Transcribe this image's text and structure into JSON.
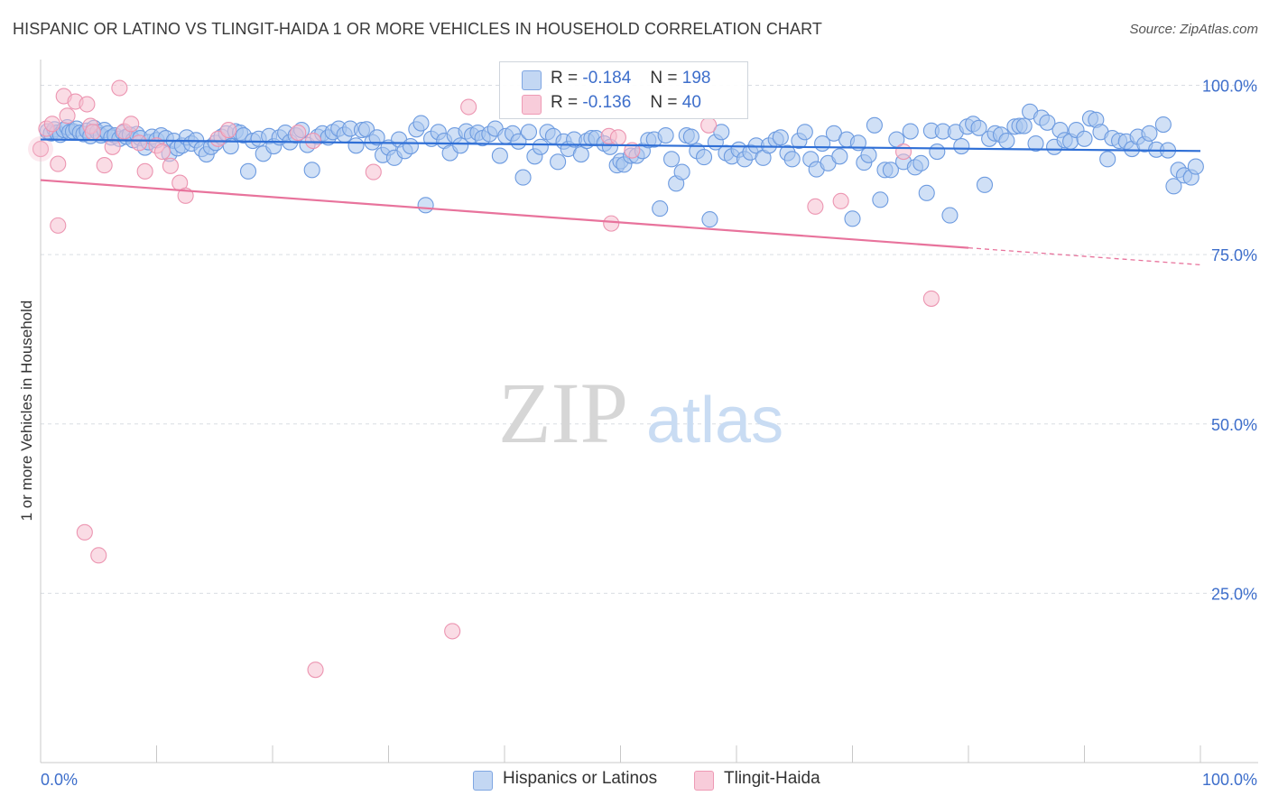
{
  "title": "HISPANIC OR LATINO VS TLINGIT-HAIDA 1 OR MORE VEHICLES IN HOUSEHOLD CORRELATION CHART",
  "source": "Source: ZipAtlas.com",
  "watermark": {
    "zip": "ZIP",
    "atlas": "atlas"
  },
  "legend_box": {
    "rows": [
      {
        "r_label": "R =",
        "r_value": "-0.184",
        "n_label": "N =",
        "n_value": "198"
      },
      {
        "r_label": "R =",
        "r_value": "-0.136",
        "n_label": "N =",
        "n_value": "40"
      }
    ]
  },
  "colors": {
    "blue_fill": "#a9c6ef",
    "blue_stroke": "#6d9be0",
    "blue_line": "#2f6fd6",
    "pink_fill": "#f6bfd0",
    "pink_stroke": "#ec95b1",
    "pink_line": "#e8739c",
    "tick_label": "#3d6ecb",
    "grid": "#d9dde3"
  },
  "chart_data": {
    "type": "scatter",
    "title": "HISPANIC OR LATINO VS TLINGIT-HAIDA 1 OR MORE VEHICLES IN HOUSEHOLD CORRELATION CHART",
    "xlabel": "",
    "ylabel": "1 or more Vehicles in Household",
    "xlim": [
      0,
      100
    ],
    "ylim": [
      0,
      103
    ],
    "x_tick_labels": [
      "0.0%",
      "100.0%"
    ],
    "y_tick_labels": [
      "25.0%",
      "50.0%",
      "75.0%",
      "100.0%"
    ],
    "y_ticks": [
      25,
      50,
      75,
      100
    ],
    "grid": true,
    "legend_position": "bottom-center",
    "series": [
      {
        "name": "Hispanics or Latinos",
        "r": -0.184,
        "n": 198,
        "trend": {
          "x": [
            0,
            100
          ],
          "y": [
            92.0,
            90.3
          ]
        },
        "points": [
          [
            0.6,
            93.2
          ],
          [
            0.9,
            92.9
          ],
          [
            1.2,
            93.5
          ],
          [
            1.4,
            93.0
          ],
          [
            1.7,
            92.7
          ],
          [
            2.0,
            93.4
          ],
          [
            2.3,
            93.8
          ],
          [
            2.5,
            93.1
          ],
          [
            2.8,
            93.2
          ],
          [
            3.1,
            93.6
          ],
          [
            3.4,
            93.0
          ],
          [
            3.7,
            92.8
          ],
          [
            4.0,
            93.3
          ],
          [
            4.3,
            92.5
          ],
          [
            4.6,
            93.7
          ],
          [
            4.9,
            93.1
          ],
          [
            5.2,
            92.6
          ],
          [
            5.5,
            93.4
          ],
          [
            5.8,
            92.9
          ],
          [
            6.1,
            92.3
          ],
          [
            6.4,
            92.6
          ],
          [
            6.8,
            92.1
          ],
          [
            7.1,
            93.0
          ],
          [
            7.4,
            92.4
          ],
          [
            7.7,
            92.7
          ],
          [
            8.0,
            91.9
          ],
          [
            8.3,
            92.8
          ],
          [
            8.6,
            92.2
          ],
          [
            9.0,
            90.8
          ],
          [
            9.3,
            91.6
          ],
          [
            9.6,
            92.4
          ],
          [
            10.0,
            91.9
          ],
          [
            10.4,
            92.6
          ],
          [
            10.8,
            92.2
          ],
          [
            11.1,
            89.9
          ],
          [
            11.5,
            91.8
          ],
          [
            11.8,
            90.7
          ],
          [
            12.2,
            91.1
          ],
          [
            12.6,
            92.3
          ],
          [
            13.0,
            91.4
          ],
          [
            13.4,
            91.9
          ],
          [
            13.9,
            90.6
          ],
          [
            14.3,
            89.8
          ],
          [
            14.7,
            90.9
          ],
          [
            15.1,
            91.5
          ],
          [
            15.6,
            92.4
          ],
          [
            16.0,
            92.9
          ],
          [
            16.4,
            91.0
          ],
          [
            16.8,
            93.2
          ],
          [
            17.2,
            93.0
          ],
          [
            17.5,
            92.6
          ],
          [
            17.9,
            87.3
          ],
          [
            18.3,
            91.8
          ],
          [
            18.8,
            92.1
          ],
          [
            19.2,
            89.9
          ],
          [
            19.7,
            92.5
          ],
          [
            20.1,
            91.0
          ],
          [
            20.6,
            92.3
          ],
          [
            21.1,
            93.0
          ],
          [
            21.5,
            91.6
          ],
          [
            22.0,
            92.6
          ],
          [
            22.5,
            93.4
          ],
          [
            23.0,
            91.2
          ],
          [
            23.4,
            87.5
          ],
          [
            23.9,
            92.4
          ],
          [
            24.3,
            92.9
          ],
          [
            24.8,
            92.3
          ],
          [
            25.2,
            93.1
          ],
          [
            25.7,
            93.6
          ],
          [
            26.2,
            92.7
          ],
          [
            26.7,
            93.6
          ],
          [
            27.2,
            91.1
          ],
          [
            27.7,
            93.4
          ],
          [
            28.1,
            93.5
          ],
          [
            28.6,
            91.6
          ],
          [
            29.0,
            92.3
          ],
          [
            29.5,
            89.7
          ],
          [
            30.0,
            90.8
          ],
          [
            30.5,
            89.3
          ],
          [
            30.9,
            92.0
          ],
          [
            31.4,
            90.3
          ],
          [
            31.9,
            91.0
          ],
          [
            32.4,
            93.5
          ],
          [
            32.8,
            94.4
          ],
          [
            33.2,
            82.3
          ],
          [
            33.7,
            92.1
          ],
          [
            34.3,
            93.1
          ],
          [
            34.8,
            91.8
          ],
          [
            35.3,
            90.0
          ],
          [
            35.7,
            92.6
          ],
          [
            36.2,
            91.1
          ],
          [
            36.7,
            93.2
          ],
          [
            37.2,
            92.6
          ],
          [
            37.7,
            93.0
          ],
          [
            38.1,
            92.2
          ],
          [
            38.7,
            92.8
          ],
          [
            39.2,
            93.6
          ],
          [
            39.6,
            89.6
          ],
          [
            40.1,
            92.5
          ],
          [
            40.7,
            92.9
          ],
          [
            41.2,
            91.7
          ],
          [
            41.6,
            86.4
          ],
          [
            42.1,
            93.1
          ],
          [
            42.6,
            89.5
          ],
          [
            43.1,
            90.9
          ],
          [
            43.7,
            93.1
          ],
          [
            44.2,
            92.5
          ],
          [
            44.6,
            88.7
          ],
          [
            45.1,
            91.7
          ],
          [
            45.5,
            90.6
          ],
          [
            46.0,
            92.0
          ],
          [
            46.6,
            89.8
          ],
          [
            47.1,
            91.8
          ],
          [
            47.5,
            92.2
          ],
          [
            47.9,
            92.2
          ],
          [
            48.6,
            91.4
          ],
          [
            49.1,
            90.9
          ],
          [
            49.7,
            88.2
          ],
          [
            50.0,
            88.8
          ],
          [
            50.3,
            88.3
          ],
          [
            50.9,
            89.6
          ],
          [
            51.4,
            89.6
          ],
          [
            51.9,
            90.3
          ],
          [
            52.4,
            91.9
          ],
          [
            52.9,
            92.0
          ],
          [
            53.4,
            81.8
          ],
          [
            53.9,
            92.6
          ],
          [
            54.4,
            89.1
          ],
          [
            54.8,
            85.5
          ],
          [
            55.3,
            87.2
          ],
          [
            55.7,
            92.6
          ],
          [
            56.1,
            92.4
          ],
          [
            56.6,
            90.3
          ],
          [
            57.2,
            89.4
          ],
          [
            57.7,
            80.2
          ],
          [
            58.2,
            91.6
          ],
          [
            58.7,
            93.1
          ],
          [
            59.1,
            90.0
          ],
          [
            59.6,
            89.5
          ],
          [
            60.2,
            90.5
          ],
          [
            60.7,
            89.1
          ],
          [
            61.2,
            90.1
          ],
          [
            61.7,
            91.1
          ],
          [
            62.3,
            89.3
          ],
          [
            62.8,
            91.1
          ],
          [
            63.4,
            92.0
          ],
          [
            63.8,
            92.3
          ],
          [
            64.4,
            90.0
          ],
          [
            64.8,
            89.1
          ],
          [
            65.4,
            91.8
          ],
          [
            65.9,
            93.1
          ],
          [
            66.4,
            89.1
          ],
          [
            66.9,
            87.6
          ],
          [
            67.4,
            91.4
          ],
          [
            67.9,
            88.5
          ],
          [
            68.4,
            92.9
          ],
          [
            68.9,
            89.5
          ],
          [
            69.5,
            92.0
          ],
          [
            70.0,
            80.3
          ],
          [
            70.5,
            91.5
          ],
          [
            71.0,
            88.6
          ],
          [
            71.4,
            89.7
          ],
          [
            71.9,
            94.1
          ],
          [
            72.4,
            83.1
          ],
          [
            72.8,
            87.5
          ],
          [
            73.3,
            87.5
          ],
          [
            73.8,
            92.0
          ],
          [
            74.4,
            88.7
          ],
          [
            75.0,
            93.2
          ],
          [
            75.4,
            87.9
          ],
          [
            75.9,
            88.5
          ],
          [
            76.4,
            84.1
          ],
          [
            76.8,
            93.3
          ],
          [
            77.3,
            90.2
          ],
          [
            77.8,
            93.2
          ],
          [
            78.4,
            80.8
          ],
          [
            78.9,
            93.1
          ],
          [
            79.4,
            91.0
          ],
          [
            79.9,
            93.9
          ],
          [
            80.4,
            94.3
          ],
          [
            80.9,
            93.7
          ],
          [
            81.4,
            85.3
          ],
          [
            81.8,
            92.1
          ],
          [
            82.3,
            92.9
          ],
          [
            82.8,
            92.7
          ],
          [
            83.3,
            91.8
          ],
          [
            84.0,
            93.9
          ],
          [
            84.4,
            94.0
          ],
          [
            84.8,
            94.0
          ],
          [
            85.3,
            96.1
          ],
          [
            85.8,
            91.4
          ],
          [
            86.3,
            95.2
          ],
          [
            86.8,
            94.5
          ],
          [
            87.4,
            90.9
          ],
          [
            87.9,
            93.4
          ],
          [
            88.3,
            91.9
          ],
          [
            88.8,
            91.7
          ],
          [
            89.3,
            93.4
          ],
          [
            90.0,
            92.1
          ],
          [
            90.5,
            95.1
          ],
          [
            91.0,
            94.9
          ],
          [
            91.4,
            93.1
          ],
          [
            92.0,
            89.1
          ],
          [
            92.4,
            92.2
          ],
          [
            93.0,
            91.8
          ],
          [
            93.6,
            91.7
          ],
          [
            94.1,
            90.6
          ],
          [
            94.6,
            92.4
          ],
          [
            95.2,
            91.3
          ],
          [
            95.6,
            92.9
          ],
          [
            96.2,
            90.5
          ],
          [
            96.8,
            94.2
          ],
          [
            97.2,
            90.4
          ],
          [
            97.7,
            85.1
          ],
          [
            98.1,
            87.5
          ],
          [
            98.6,
            86.7
          ],
          [
            99.2,
            86.4
          ],
          [
            99.6,
            88.0
          ]
        ]
      },
      {
        "name": "Tlingit-Haida",
        "r": -0.136,
        "n": 40,
        "trend": {
          "x": [
            0,
            80
          ],
          "y": [
            86.0,
            76.0
          ]
        },
        "trend_dashed": {
          "x": [
            80,
            100
          ],
          "y": [
            76.0,
            73.5
          ]
        },
        "points": [
          [
            0.0,
            90.6
          ],
          [
            0.5,
            93.6
          ],
          [
            1.0,
            94.3
          ],
          [
            1.5,
            88.4
          ],
          [
            2.0,
            98.4
          ],
          [
            2.3,
            95.5
          ],
          [
            3.0,
            97.6
          ],
          [
            4.0,
            97.2
          ],
          [
            4.3,
            94.0
          ],
          [
            1.5,
            79.3
          ],
          [
            4.5,
            93.1
          ],
          [
            5.5,
            88.2
          ],
          [
            6.2,
            90.9
          ],
          [
            6.8,
            99.6
          ],
          [
            7.2,
            93.2
          ],
          [
            7.8,
            94.3
          ],
          [
            8.5,
            91.5
          ],
          [
            9.0,
            87.3
          ],
          [
            10.0,
            91.1
          ],
          [
            10.5,
            90.2
          ],
          [
            11.2,
            88.1
          ],
          [
            12.0,
            85.6
          ],
          [
            12.5,
            83.7
          ],
          [
            15.3,
            92.1
          ],
          [
            16.2,
            93.4
          ],
          [
            22.2,
            93.0
          ],
          [
            23.5,
            91.8
          ],
          [
            28.7,
            87.2
          ],
          [
            36.9,
            96.8
          ],
          [
            49.0,
            92.5
          ],
          [
            49.8,
            92.3
          ],
          [
            49.2,
            79.6
          ],
          [
            51.0,
            90.4
          ],
          [
            57.6,
            94.1
          ],
          [
            66.8,
            82.1
          ],
          [
            69.0,
            82.9
          ],
          [
            74.4,
            90.2
          ],
          [
            76.8,
            68.5
          ],
          [
            3.8,
            34.0
          ],
          [
            5.0,
            30.6
          ]
        ],
        "extra_points": [
          [
            35.5,
            19.4
          ],
          [
            23.7,
            13.7
          ]
        ]
      }
    ]
  },
  "bottom_legend": [
    {
      "label": "Hispanics or Latinos"
    },
    {
      "label": "Tlingit-Haida"
    }
  ]
}
